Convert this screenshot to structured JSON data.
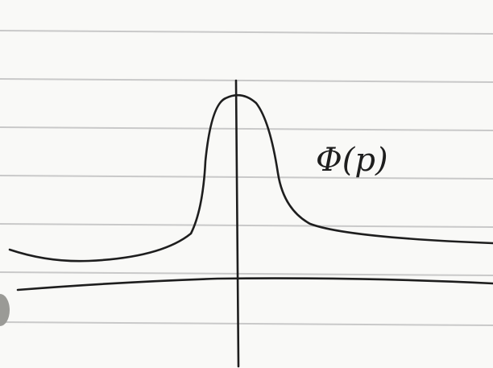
{
  "label": "Φ(p)"
}
